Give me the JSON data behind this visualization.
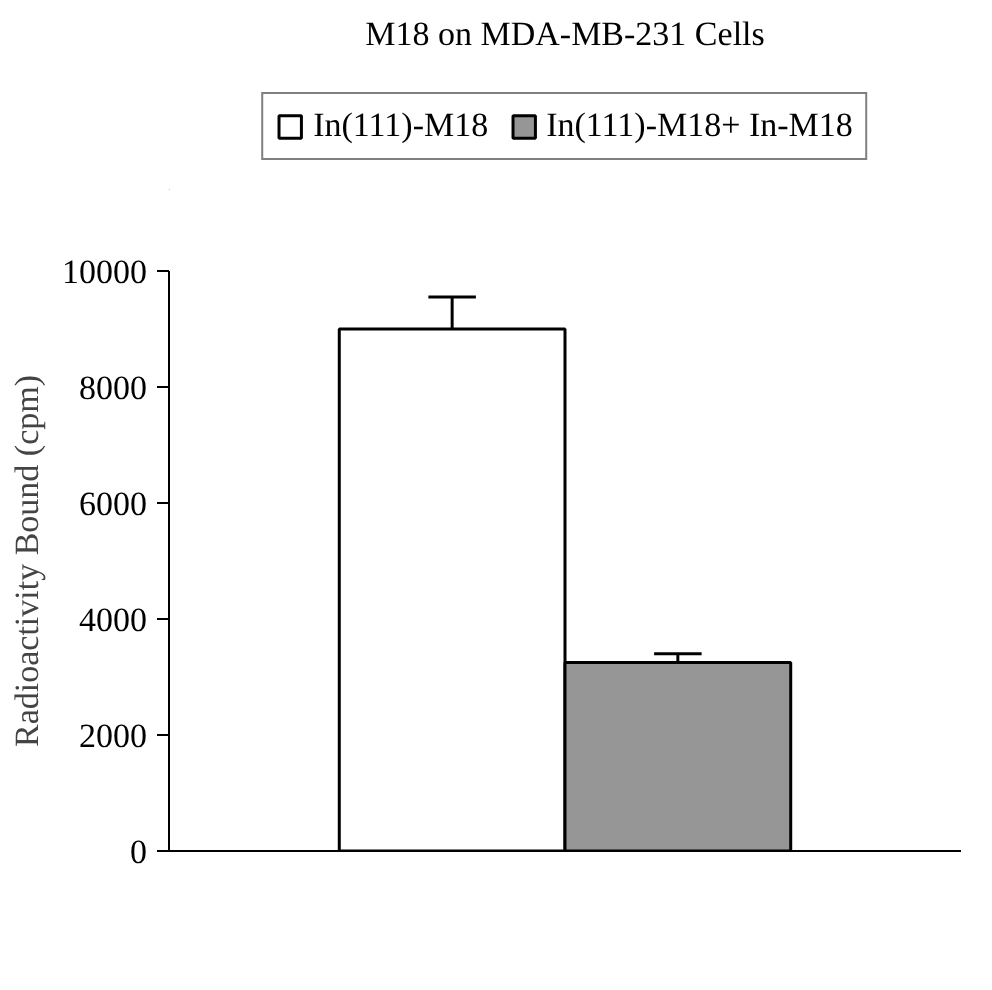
{
  "chart_data": {
    "type": "bar",
    "title": "M18 on MDA-MB-231 Cells",
    "ylabel": "Radioactivity Bound (cpm)",
    "categories": [
      null
    ],
    "series": [
      {
        "name": "In(111)-M18",
        "color": "#ffffff",
        "values": [
          9000
        ],
        "errors": [
          550
        ]
      },
      {
        "name": "In(111)-M18+ In-M18",
        "color": "#969696",
        "values": [
          3250
        ],
        "errors": [
          150
        ]
      }
    ],
    "ylim": [
      0,
      10000
    ],
    "yticks": [
      0,
      2000,
      4000,
      6000,
      8000,
      10000
    ],
    "grid": false,
    "legend": "top"
  }
}
